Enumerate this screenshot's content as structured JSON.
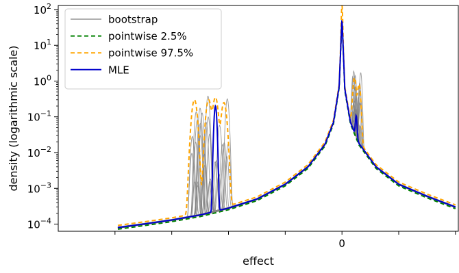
{
  "chart_data": {
    "type": "line",
    "title": "",
    "xlabel": "effect",
    "ylabel": "density (logarithmic scale)",
    "yscale": "log",
    "xlim": [
      -0.5,
      0.205
    ],
    "ylim": [
      6.3e-05,
      130
    ],
    "x_ticks": [
      {
        "value": -0.4,
        "label": ""
      },
      {
        "value": -0.3,
        "label": ""
      },
      {
        "value": -0.2,
        "label": ""
      },
      {
        "value": -0.1,
        "label": ""
      },
      {
        "value": 0,
        "label": "0"
      },
      {
        "value": 0.1,
        "label": ""
      },
      {
        "value": 0.2,
        "label": ""
      }
    ],
    "y_ticks": [
      {
        "value": 0.0001,
        "base": "10",
        "exp": "−4"
      },
      {
        "value": 0.001,
        "base": "10",
        "exp": "−3"
      },
      {
        "value": 0.01,
        "base": "10",
        "exp": "−2"
      },
      {
        "value": 0.1,
        "base": "10",
        "exp": "−1"
      },
      {
        "value": 1,
        "base": "10",
        "exp": "0"
      },
      {
        "value": 10,
        "base": "10",
        "exp": "1"
      },
      {
        "value": 100,
        "base": "10",
        "exp": "2"
      }
    ],
    "grid": false,
    "legend_position": "top-left",
    "legend": [
      {
        "label": "bootstrap",
        "color": "#808080",
        "style": "solid"
      },
      {
        "label": "pointwise 2.5%",
        "color": "#008000",
        "style": "dashed"
      },
      {
        "label": "pointwise 97.5%",
        "color": "#ffa500",
        "style": "dashed"
      },
      {
        "label": "MLE",
        "color": "#0000cc",
        "style": "solid"
      }
    ],
    "background_density": {
      "x": [
        -0.395,
        -0.35,
        -0.3,
        -0.25,
        -0.2,
        -0.15,
        -0.1,
        -0.06,
        -0.03,
        -0.015,
        -0.005,
        0,
        0.005,
        0.015,
        0.03,
        0.06,
        0.1,
        0.15,
        0.2
      ],
      "y": [
        8e-05,
        0.0001,
        0.00013,
        0.00018,
        0.00028,
        0.0005,
        0.0013,
        0.004,
        0.017,
        0.07,
        0.7,
        60,
        0.6,
        0.07,
        0.018,
        0.004,
        0.0013,
        0.0006,
        0.0003
      ]
    },
    "series": [
      {
        "name": "bootstrap",
        "color": "#808080",
        "count": 30,
        "left_peak_x_range": [
          -0.265,
          -0.2
        ],
        "left_peak_y_range": [
          0.001,
          0.5
        ],
        "right_peak_x_range": [
          0.018,
          0.034
        ],
        "right_peak_y_range": [
          0.01,
          2
        ]
      },
      {
        "name": "pointwise 2.5%",
        "color": "#008000",
        "left_peak": [],
        "right_peak": [],
        "scale": 0.9
      },
      {
        "name": "pointwise 97.5%",
        "color": "#ffa500",
        "left_peak": [
          [
            -0.26,
            0.3
          ],
          [
            -0.235,
            0.3
          ],
          [
            -0.223,
            0.35
          ],
          [
            -0.208,
            0.25
          ]
        ],
        "right_peak": [
          [
            0.022,
            1.2
          ],
          [
            0.03,
            0.8
          ]
        ],
        "scale": 1.15,
        "center_peak": 80
      },
      {
        "name": "MLE",
        "color": "#0000cc",
        "left_peak": [
          [
            -0.223,
            0.2
          ]
        ],
        "right_peak": [
          [
            0.025,
            0.08
          ]
        ],
        "scale": 1.0
      }
    ]
  }
}
